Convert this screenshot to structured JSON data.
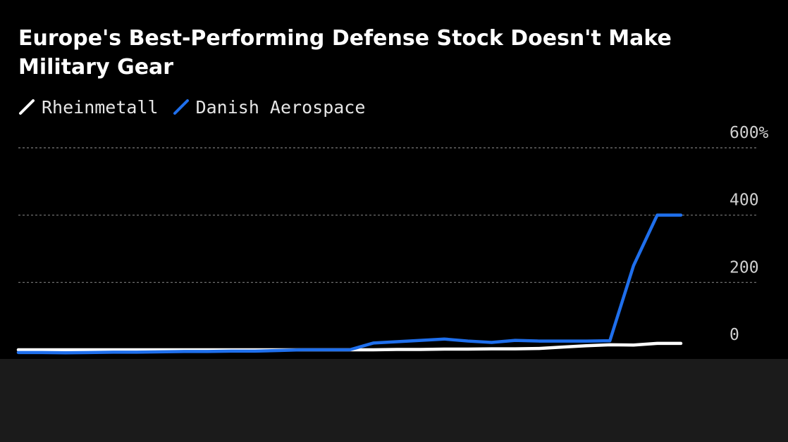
{
  "title": "Europe's Best-Performing Defense Stock Doesn't Make Military Gear",
  "chart_data": {
    "type": "line",
    "title": "Europe's Best-Performing Defense Stock Doesn't Make Military Gear",
    "xlabel": "",
    "ylabel": "",
    "ylim": [
      0,
      600
    ],
    "y_ticks": [
      0,
      200,
      400,
      600
    ],
    "y_tick_labels": [
      "0",
      "200",
      "400",
      "600%"
    ],
    "grid": true,
    "legend_position": "top-left",
    "x": [
      0,
      1,
      2,
      3,
      4,
      5,
      6,
      7,
      8,
      9,
      10,
      11,
      12,
      13,
      14,
      15,
      16,
      17,
      18,
      19,
      20,
      21,
      22,
      23,
      24,
      25,
      26,
      27,
      28
    ],
    "series": [
      {
        "name": "Rheinmetall",
        "color": "#ffffff",
        "values": [
          0,
          0,
          0,
          0,
          0,
          0,
          0,
          0,
          0,
          0,
          0,
          0,
          0,
          0,
          0,
          0,
          1,
          1,
          2,
          2,
          3,
          3,
          4,
          8,
          12,
          15,
          14,
          19,
          19
        ]
      },
      {
        "name": "Danish Aerospace",
        "color": "#1f6fec",
        "values": [
          -8,
          -8,
          -9,
          -8,
          -7,
          -7,
          -6,
          -5,
          -5,
          -4,
          -4,
          -2,
          0,
          0,
          0,
          20,
          24,
          28,
          32,
          26,
          22,
          28,
          26,
          26,
          26,
          27,
          250,
          400,
          400
        ]
      }
    ]
  }
}
